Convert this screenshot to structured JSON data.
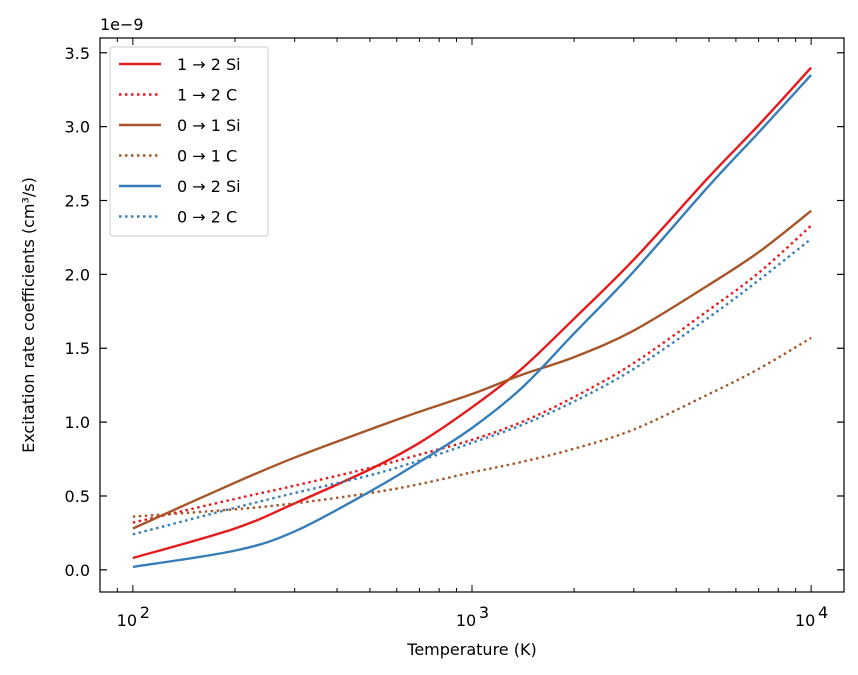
{
  "chart_data": {
    "type": "line",
    "title": "",
    "xlabel": "Temperature (K)",
    "ylabel": "Excitation rate coefficients (cm³/s)",
    "xscale": "log",
    "xlim": [
      80,
      12500
    ],
    "ylim": [
      -0.15,
      3.6
    ],
    "y_offset_label": "1e−9",
    "y_ticks": [
      0.0,
      0.5,
      1.0,
      1.5,
      2.0,
      2.5,
      3.0,
      3.5
    ],
    "y_tick_labels": [
      "0.0",
      "0.5",
      "1.0",
      "1.5",
      "2.0",
      "2.5",
      "3.0",
      "3.5"
    ],
    "x_ticks": [
      100,
      1000,
      10000
    ],
    "x_tick_labels": [
      {
        "base": "10",
        "exp": "2"
      },
      {
        "base": "10",
        "exp": "3"
      },
      {
        "base": "10",
        "exp": "4"
      }
    ],
    "grid": false,
    "legend_position": "top-left",
    "x": [
      100,
      200,
      300,
      500,
      700,
      1000,
      1400,
      2000,
      3000,
      5000,
      7000,
      10000
    ],
    "series": [
      {
        "name": "1 → 2 Si",
        "color": "#e41a1c",
        "style": "solid",
        "values": [
          0.08,
          0.28,
          0.45,
          0.68,
          0.86,
          1.1,
          1.36,
          1.7,
          2.1,
          2.66,
          3.01,
          3.4
        ]
      },
      {
        "name": "1 → 2 C",
        "color": "#e41a1c",
        "style": "dotted",
        "values": [
          0.32,
          0.48,
          0.57,
          0.69,
          0.78,
          0.88,
          1.0,
          1.17,
          1.4,
          1.76,
          2.01,
          2.33
        ]
      },
      {
        "name": "0 → 1 Si",
        "color": "#a65628",
        "style": "solid",
        "values": [
          0.28,
          0.59,
          0.76,
          0.95,
          1.07,
          1.19,
          1.32,
          1.44,
          1.62,
          1.93,
          2.15,
          2.43
        ]
      },
      {
        "name": "0 → 1 C",
        "color": "#a65628",
        "style": "dotted",
        "values": [
          0.36,
          0.41,
          0.45,
          0.52,
          0.58,
          0.66,
          0.73,
          0.82,
          0.95,
          1.19,
          1.36,
          1.57
        ]
      },
      {
        "name": "0 → 2 Si",
        "color": "#377eb8",
        "style": "solid",
        "values": [
          0.02,
          0.13,
          0.26,
          0.53,
          0.73,
          0.96,
          1.23,
          1.6,
          2.02,
          2.6,
          2.96,
          3.35
        ]
      },
      {
        "name": "0 → 2 C",
        "color": "#377eb8",
        "style": "dotted",
        "values": [
          0.24,
          0.42,
          0.52,
          0.64,
          0.74,
          0.86,
          0.98,
          1.14,
          1.36,
          1.71,
          1.96,
          2.24
        ]
      }
    ]
  }
}
